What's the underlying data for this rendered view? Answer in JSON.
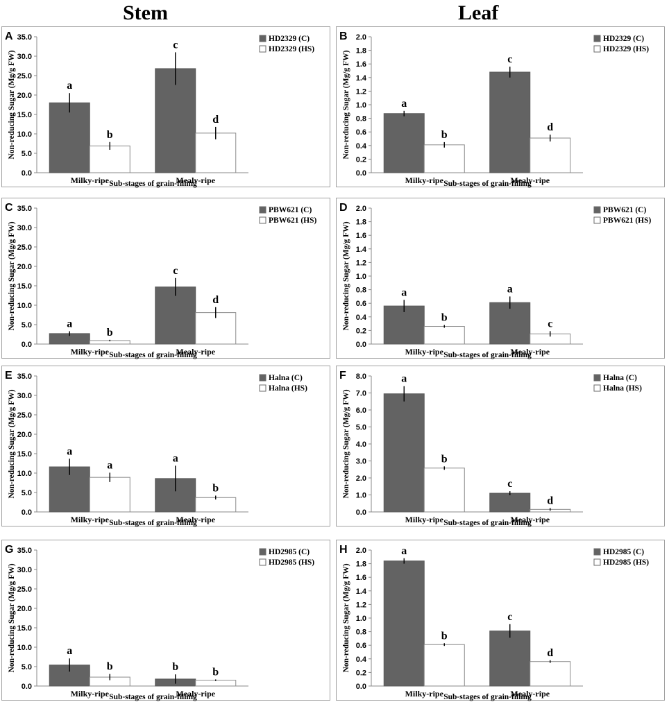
{
  "column_headers": {
    "stem": "Stem",
    "leaf": "Leaf"
  },
  "colors": {
    "control": "#636363",
    "heat_stress": "#ffffff",
    "bar_stroke": "#5a5a5a"
  },
  "chart_data": [
    {
      "panel": "A",
      "type": "bar",
      "column": "stem",
      "categories": [
        "Milky-ripe",
        "Mealy-ripe"
      ],
      "xlabel": "Sub-stages of grain-filling",
      "ylabel": "Non-reducing Sugar (Mg/g FW)",
      "ylim": [
        0,
        35
      ],
      "ystep": 5,
      "ydecimals": 1,
      "ytick_labels": [
        "0.0",
        "5.0",
        "10.0",
        "15.0",
        "20.0",
        "25.0",
        "30.0",
        "35.0"
      ],
      "series": [
        {
          "name": "HD2329 (C)",
          "values": [
            18.0,
            26.8
          ],
          "errors": [
            2.5,
            4.2
          ],
          "letters": [
            "a",
            "c"
          ]
        },
        {
          "name": "HD2329 (HS)",
          "values": [
            6.9,
            10.2
          ],
          "errors": [
            1.0,
            1.6
          ],
          "letters": [
            "b",
            "d"
          ]
        }
      ]
    },
    {
      "panel": "B",
      "type": "bar",
      "column": "leaf",
      "categories": [
        "Milky-ripe",
        "Mealy-ripe"
      ],
      "xlabel": "Sub-stages of grain-filling",
      "ylabel": "Non-reducing Sugar (Mg/g FW)",
      "ylim": [
        0,
        2
      ],
      "ystep": 0.2,
      "ydecimals": 1,
      "ytick_labels": [
        "0.0",
        "0.2",
        "0.4",
        "0.6",
        "0.8",
        "1.0",
        "1.2",
        "1.4",
        "1.6",
        "1.8",
        "2.0"
      ],
      "series": [
        {
          "name": "HD2329 (C)",
          "values": [
            0.87,
            1.48
          ],
          "errors": [
            0.04,
            0.08
          ],
          "letters": [
            "a",
            "c"
          ]
        },
        {
          "name": "HD2329 (HS)",
          "values": [
            0.41,
            0.51
          ],
          "errors": [
            0.04,
            0.05
          ],
          "letters": [
            "b",
            "d"
          ]
        }
      ]
    },
    {
      "panel": "C",
      "type": "bar",
      "column": "stem",
      "categories": [
        "Milky-ripe",
        "Mealy-ripe"
      ],
      "xlabel": "Sub-stages of grain-filling",
      "ylabel": "Non-reducing Sugar (Mg/g FW)",
      "ylim": [
        0,
        35
      ],
      "ystep": 5,
      "ydecimals": 1,
      "ytick_labels": [
        "0.0",
        "5.0",
        "10.0",
        "15.0",
        "20.0",
        "25.0",
        "30.0",
        "35.0"
      ],
      "series": [
        {
          "name": "PBW621 (C)",
          "values": [
            2.7,
            14.7
          ],
          "errors": [
            0.6,
            2.3
          ],
          "letters": [
            "a",
            "c"
          ]
        },
        {
          "name": "PBW621 (HS)",
          "values": [
            0.9,
            8.1
          ],
          "errors": [
            0.2,
            1.4
          ],
          "letters": [
            "b",
            "d"
          ]
        }
      ]
    },
    {
      "panel": "D",
      "type": "bar",
      "column": "leaf",
      "categories": [
        "Milky-ripe",
        "Mealy-ripe"
      ],
      "xlabel": "Sub-stages of grain-filling",
      "ylabel": "Non-reducing Sugar (Mg/g FW)",
      "ylim": [
        0,
        2
      ],
      "ystep": 0.2,
      "ydecimals": 1,
      "ytick_labels": [
        "0.0",
        "0.2",
        "0.4",
        "0.6",
        "0.8",
        "1.0",
        "1.2",
        "1.4",
        "1.6",
        "1.8",
        "2.0"
      ],
      "series": [
        {
          "name": "PBW621 (C)",
          "values": [
            0.56,
            0.61
          ],
          "errors": [
            0.09,
            0.09
          ],
          "letters": [
            "a",
            "a"
          ]
        },
        {
          "name": "PBW621 (HS)",
          "values": [
            0.26,
            0.15
          ],
          "errors": [
            0.02,
            0.04
          ],
          "letters": [
            "b",
            "c"
          ]
        }
      ]
    },
    {
      "panel": "E",
      "type": "bar",
      "column": "stem",
      "categories": [
        "Milky-ripe",
        "Mealy-ripe"
      ],
      "xlabel": "Sub-stages of grain-filling",
      "ylabel": "Non-reducing Sugar (Mg/g FW)",
      "ylim": [
        0,
        35
      ],
      "ystep": 5,
      "ydecimals": 1,
      "ytick_labels": [
        "0.0",
        "5.0",
        "10.0",
        "15.0",
        "20.0",
        "25.0",
        "30.0",
        "35.0"
      ],
      "series": [
        {
          "name": "Halna (C)",
          "values": [
            11.6,
            8.6
          ],
          "errors": [
            2.1,
            3.3
          ],
          "letters": [
            "a",
            "a"
          ]
        },
        {
          "name": "Halna (HS)",
          "values": [
            8.9,
            3.7
          ],
          "errors": [
            1.2,
            0.5
          ],
          "letters": [
            "a",
            "b"
          ]
        }
      ]
    },
    {
      "panel": "F",
      "type": "bar",
      "column": "leaf",
      "categories": [
        "Milky-ripe",
        "Mealy-ripe"
      ],
      "xlabel": "Sub-stages of grain-filling",
      "ylabel": "Non-reducing Sugar (Mg/g FW)",
      "ylim": [
        0,
        8
      ],
      "ystep": 1,
      "ydecimals": 1,
      "ytick_labels": [
        "0.0",
        "1.0",
        "2.0",
        "3.0",
        "4.0",
        "5.0",
        "6.0",
        "7.0",
        "8.0"
      ],
      "series": [
        {
          "name": "Halna (C)",
          "values": [
            6.95,
            1.1
          ],
          "errors": [
            0.45,
            0.12
          ],
          "letters": [
            "a",
            "c"
          ]
        },
        {
          "name": "Halna (HS)",
          "values": [
            2.58,
            0.15
          ],
          "errors": [
            0.1,
            0.08
          ],
          "letters": [
            "b",
            "d"
          ]
        }
      ]
    },
    {
      "panel": "G",
      "type": "bar",
      "column": "stem",
      "categories": [
        "Milky-ripe",
        "Mealy-ripe"
      ],
      "xlabel": "Sub-stages of grain-filling",
      "ylabel": "Non-reducing Sugar (Mg/g FW)",
      "ylim": [
        0,
        35
      ],
      "ystep": 5,
      "ydecimals": 1,
      "ytick_labels": [
        "0.0",
        "5.0",
        "10.0",
        "15.0",
        "20.0",
        "25.0",
        "30.0",
        "35.0"
      ],
      "series": [
        {
          "name": "HD2985 (C)",
          "values": [
            5.4,
            1.8
          ],
          "errors": [
            1.7,
            1.2
          ],
          "letters": [
            "a",
            "b"
          ]
        },
        {
          "name": "HD2985 (HS)",
          "values": [
            2.3,
            1.5
          ],
          "errors": [
            0.8,
            0.2
          ],
          "letters": [
            "b",
            "b"
          ]
        }
      ]
    },
    {
      "panel": "H",
      "type": "bar",
      "column": "leaf",
      "categories": [
        "Milky-ripe",
        "Mealy-ripe"
      ],
      "xlabel": "Sub-stages of grain-filling",
      "ylabel": "Non-reducing Sugar (Mg/g FW)",
      "ylim": [
        0,
        2
      ],
      "ystep": 0.2,
      "ydecimals": 1,
      "ytick_labels": [
        "0.0",
        "0.2",
        "0.4",
        "0.6",
        "0.8",
        "1.0",
        "1.2",
        "1.4",
        "1.6",
        "1.8",
        "2.0"
      ],
      "series": [
        {
          "name": "HD2985 (C)",
          "values": [
            1.84,
            0.81
          ],
          "errors": [
            0.04,
            0.1
          ],
          "letters": [
            "a",
            "c"
          ]
        },
        {
          "name": "HD2985 (HS)",
          "values": [
            0.61,
            0.36
          ],
          "errors": [
            0.02,
            0.02
          ],
          "letters": [
            "b",
            "d"
          ]
        }
      ]
    }
  ]
}
